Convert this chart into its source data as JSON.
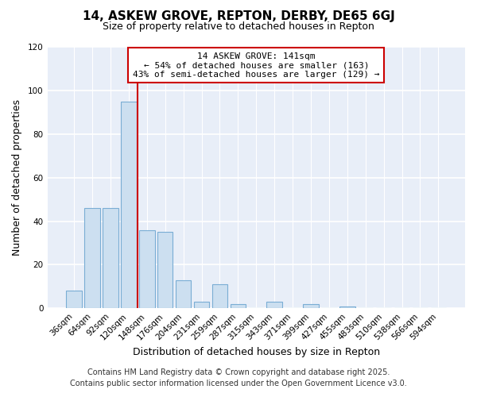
{
  "title": "14, ASKEW GROVE, REPTON, DERBY, DE65 6GJ",
  "subtitle": "Size of property relative to detached houses in Repton",
  "xlabel": "Distribution of detached houses by size in Repton",
  "ylabel": "Number of detached properties",
  "bar_labels": [
    "36sqm",
    "64sqm",
    "92sqm",
    "120sqm",
    "148sqm",
    "176sqm",
    "204sqm",
    "231sqm",
    "259sqm",
    "287sqm",
    "315sqm",
    "343sqm",
    "371sqm",
    "399sqm",
    "427sqm",
    "455sqm",
    "483sqm",
    "510sqm",
    "538sqm",
    "566sqm",
    "594sqm"
  ],
  "bar_values": [
    8,
    46,
    46,
    95,
    36,
    35,
    13,
    3,
    11,
    2,
    0,
    3,
    0,
    2,
    0,
    1,
    0,
    0,
    0,
    0,
    0
  ],
  "bar_color": "#ccdff0",
  "bar_edgecolor": "#7aadd4",
  "vline_color": "#cc0000",
  "vline_x_index": 3.5,
  "annotation_title": "14 ASKEW GROVE: 141sqm",
  "annotation_line1": "← 54% of detached houses are smaller (163)",
  "annotation_line2": "43% of semi-detached houses are larger (129) →",
  "annotation_box_edgecolor": "#cc0000",
  "annotation_box_facecolor": "white",
  "ylim": [
    0,
    120
  ],
  "yticks": [
    0,
    20,
    40,
    60,
    80,
    100,
    120
  ],
  "footer1": "Contains HM Land Registry data © Crown copyright and database right 2025.",
  "footer2": "Contains public sector information licensed under the Open Government Licence v3.0.",
  "fig_background_color": "#ffffff",
  "plot_background_color": "#e8eef8",
  "grid_color": "#ffffff",
  "title_fontsize": 11,
  "subtitle_fontsize": 9,
  "axis_label_fontsize": 9,
  "tick_fontsize": 7.5,
  "annotation_fontsize": 8,
  "footer_fontsize": 7
}
